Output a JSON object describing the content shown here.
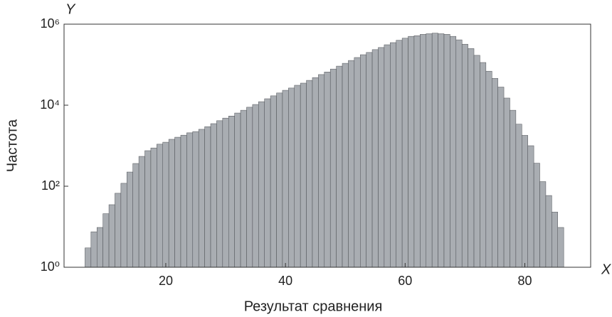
{
  "chart_data": {
    "type": "histogram",
    "x_label": "Результат сравнения",
    "y_label": "Частота",
    "x_axis_symbol": "X",
    "y_axis_symbol": "Y",
    "color": "#a9adb2",
    "edge_color": "#4a4d52",
    "log_y": true,
    "xlim": [
      3,
      91
    ],
    "xticks": [
      20,
      40,
      60,
      80
    ],
    "ylim": [
      1,
      1000000
    ],
    "yticks": [
      {
        "value": 1,
        "label": "10⁰"
      },
      {
        "value": 100,
        "label": "10²"
      },
      {
        "value": 10000,
        "label": "10⁴"
      },
      {
        "value": 1000000,
        "label": "10⁶"
      }
    ],
    "bins": [
      6.5,
      7.5,
      8.5,
      9.5,
      10.5,
      11.5,
      12.5,
      13.5,
      14.5,
      15.5,
      16.5,
      17.5,
      18.5,
      19.5,
      20.5,
      21.5,
      22.5,
      23.5,
      24.5,
      25.5,
      26.5,
      27.5,
      28.5,
      29.5,
      30.5,
      31.5,
      32.5,
      33.5,
      34.5,
      35.5,
      36.5,
      37.5,
      38.5,
      39.5,
      40.5,
      41.5,
      42.5,
      43.5,
      44.5,
      45.5,
      46.5,
      47.5,
      48.5,
      49.5,
      50.5,
      51.5,
      52.5,
      53.5,
      54.5,
      55.5,
      56.5,
      57.5,
      58.5,
      59.5,
      60.5,
      61.5,
      62.5,
      63.5,
      64.5,
      65.5,
      66.5,
      67.5,
      68.5,
      69.5,
      70.5,
      71.5,
      72.5,
      73.5,
      74.5,
      75.5,
      76.5,
      77.5,
      78.5,
      79.5,
      80.5,
      81.5,
      82.5,
      83.5,
      84.5,
      85.5,
      86.5
    ],
    "values": [
      3,
      7.5,
      9.6,
      21,
      35,
      67,
      118,
      224,
      364,
      545,
      754,
      880,
      1090,
      1220,
      1440,
      1620,
      1820,
      2080,
      2230,
      2540,
      2950,
      3500,
      4140,
      4800,
      5400,
      6400,
      7500,
      8900,
      10400,
      12200,
      14400,
      17000,
      20000,
      23300,
      26500,
      31000,
      35000,
      41000,
      48000,
      57000,
      66000,
      78000,
      92000,
      108000,
      127000,
      150000,
      176000,
      200000,
      235000,
      265000,
      310000,
      350000,
      400000,
      450000,
      500000,
      520000,
      560000,
      580000,
      600000,
      580000,
      560000,
      500000,
      410000,
      320000,
      250000,
      170000,
      113000,
      69000,
      46000,
      28000,
      15000,
      7500,
      3400,
      1800,
      1000,
      370,
      130,
      59,
      23,
      9.6
    ]
  }
}
